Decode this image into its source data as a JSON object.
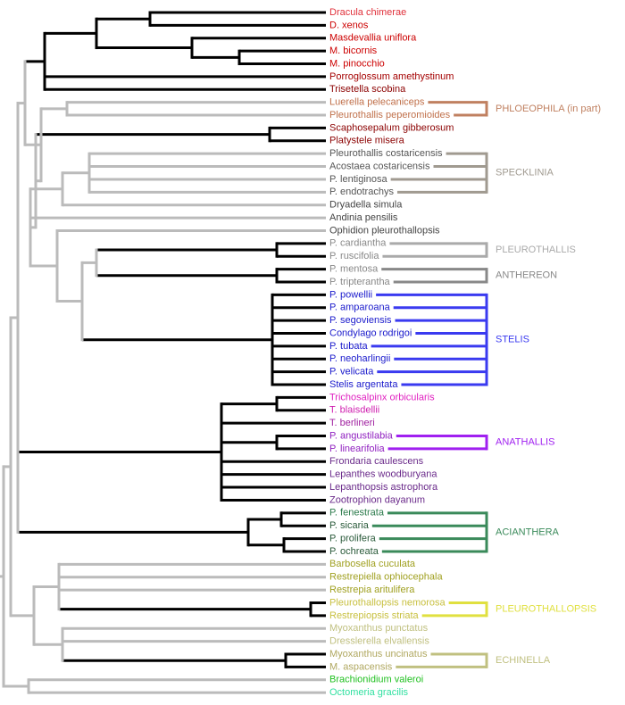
{
  "taxa": [
    {
      "name": "Dracula chimerae",
      "color": "#e0303a"
    },
    {
      "name": "D. xenos",
      "color": "#cc0000"
    },
    {
      "name": "Masdevallia uniflora",
      "color": "#cc0000"
    },
    {
      "name": "M. bicornis",
      "color": "#cc0000"
    },
    {
      "name": "M. pinocchio",
      "color": "#cc0000"
    },
    {
      "name": "Porroglossum amethystinum",
      "color": "#a40000"
    },
    {
      "name": "Trisetella scobina",
      "color": "#8b0000"
    },
    {
      "name": "Luerella pelecaniceps",
      "color": "#c0704a"
    },
    {
      "name": "Pleurothallis peperomioides",
      "color": "#c0704a"
    },
    {
      "name": "Scaphosepalum gibberosum",
      "color": "#8b0000"
    },
    {
      "name": "Platystele misera",
      "color": "#8b0000"
    },
    {
      "name": "Pleurothallis costaricensis",
      "color": "#555555"
    },
    {
      "name": "Acostaea costaricensis",
      "color": "#555555"
    },
    {
      "name": "P. lentiginosa",
      "color": "#555555"
    },
    {
      "name": "P. endotrachys",
      "color": "#555555"
    },
    {
      "name": "Dryadella simula",
      "color": "#444444"
    },
    {
      "name": "Andinia pensilis",
      "color": "#444444"
    },
    {
      "name": "Ophidion pleurothallopsis",
      "color": "#444444"
    },
    {
      "name": "P. cardiantha",
      "color": "#888888"
    },
    {
      "name": "P. ruscifolia",
      "color": "#888888"
    },
    {
      "name": "P. mentosa",
      "color": "#888888"
    },
    {
      "name": "P. tripterantha",
      "color": "#888888"
    },
    {
      "name": "P. powellii",
      "color": "#1a1acc"
    },
    {
      "name": "P. amparoana",
      "color": "#1a1acc"
    },
    {
      "name": "P. segoviensis",
      "color": "#1a1acc"
    },
    {
      "name": "Condylago rodrigoi",
      "color": "#1a1acc"
    },
    {
      "name": "P. tubata",
      "color": "#1a1acc"
    },
    {
      "name": "P. neoharlingii",
      "color": "#1a1acc"
    },
    {
      "name": "P. velicata",
      "color": "#1a1acc"
    },
    {
      "name": "Stelis argentata",
      "color": "#1a1acc"
    },
    {
      "name": "Trichosalpinx orbicularis",
      "color": "#e020c0"
    },
    {
      "name": "T. blaisdellii",
      "color": "#d020b0"
    },
    {
      "name": "T. berlineri",
      "color": "#a020a0"
    },
    {
      "name": "P. angustilabia",
      "color": "#9020c0"
    },
    {
      "name": "P. linearifolia",
      "color": "#9020c0"
    },
    {
      "name": "Frondaria caulescens",
      "color": "#6a2a8a"
    },
    {
      "name": "Lepanthes woodburyana",
      "color": "#6a2a8a"
    },
    {
      "name": "Lepanthopsis astrophora",
      "color": "#6a2a8a"
    },
    {
      "name": "Zootrophion dayanum",
      "color": "#6a2a8a"
    },
    {
      "name": "P. fenestrata",
      "color": "#2a7a4a"
    },
    {
      "name": "P. sicaria",
      "color": "#2a5a3a"
    },
    {
      "name": "P. prolifera",
      "color": "#2a5a3a"
    },
    {
      "name": "P. ochreata",
      "color": "#2a5a3a"
    },
    {
      "name": "Barbosella cuculata",
      "color": "#a0a020"
    },
    {
      "name": "Restrepiella ophiocephala",
      "color": "#a0a020"
    },
    {
      "name": "Restrepia aritulifera",
      "color": "#a0a020"
    },
    {
      "name": "Pleurothallopsis nemorosa",
      "color": "#c8c040"
    },
    {
      "name": "Restrepiopsis striata",
      "color": "#c8c040"
    },
    {
      "name": "Myoxanthus punctatus",
      "color": "#c0c080"
    },
    {
      "name": "Dresslerella elvallensis",
      "color": "#c0c080"
    },
    {
      "name": "Myoxanthus uncinatus",
      "color": "#b0a860"
    },
    {
      "name": "M. aspacensis",
      "color": "#b0a860"
    },
    {
      "name": "Brachionidium valeroi",
      "color": "#20c020"
    },
    {
      "name": "Octomeria gracilis",
      "color": "#30e0a0"
    }
  ],
  "clades": [
    {
      "label": "PHLOEOPHILA (in part)",
      "color": "#c08060"
    },
    {
      "label": "SPECKLINIA",
      "color": "#a09a90"
    },
    {
      "label": "PLEUROTHALLIS",
      "color": "#aaaaaa"
    },
    {
      "label": "ANTHEREON",
      "color": "#888888"
    },
    {
      "label": "STELIS",
      "color": "#3a3af0"
    },
    {
      "label": "ANATHALLIS",
      "color": "#a020f0"
    },
    {
      "label": "ACIANTHERA",
      "color": "#3a8a5a"
    },
    {
      "label": "PLEUROTHALLOPSIS",
      "color": "#e0e040"
    },
    {
      "label": "ECHINELLA",
      "color": "#c0c080"
    }
  ]
}
